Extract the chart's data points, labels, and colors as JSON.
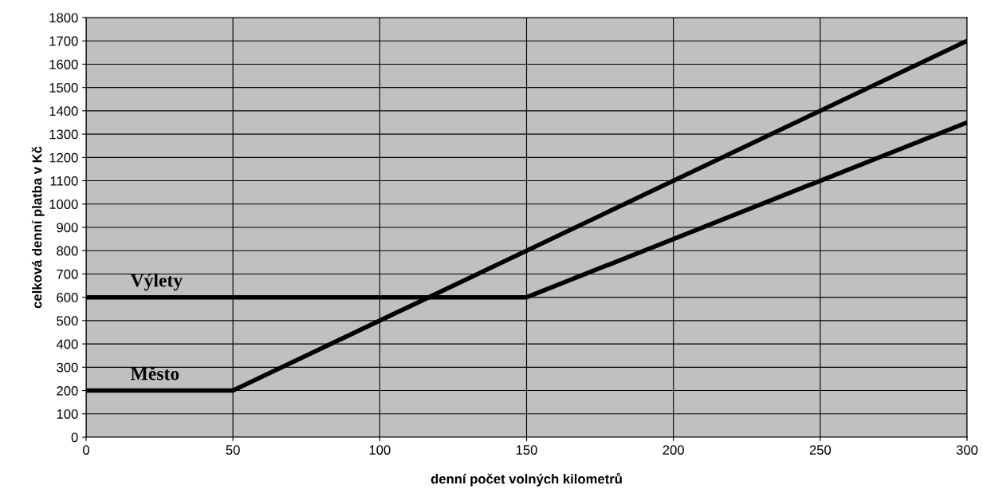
{
  "chart_data": {
    "type": "line",
    "xlabel": "denní počet volných kilometrů",
    "ylabel": "celková denní platba v Kč",
    "series": [
      {
        "name": "Výlety",
        "color": "#000000",
        "x": [
          0,
          150,
          300
        ],
        "values": [
          600,
          600,
          1350
        ]
      },
      {
        "name": "Město",
        "color": "#000000",
        "x": [
          0,
          50,
          300
        ],
        "values": [
          200,
          200,
          1700
        ]
      }
    ],
    "xlim": [
      0,
      300
    ],
    "xticks": [
      0,
      50,
      100,
      150,
      200,
      250,
      300
    ],
    "ylim": [
      0,
      1800
    ],
    "yticks": [
      0,
      100,
      200,
      300,
      400,
      500,
      600,
      700,
      800,
      900,
      1000,
      1100,
      1200,
      1300,
      1400,
      1500,
      1600,
      1700,
      1800
    ],
    "grid": true
  }
}
